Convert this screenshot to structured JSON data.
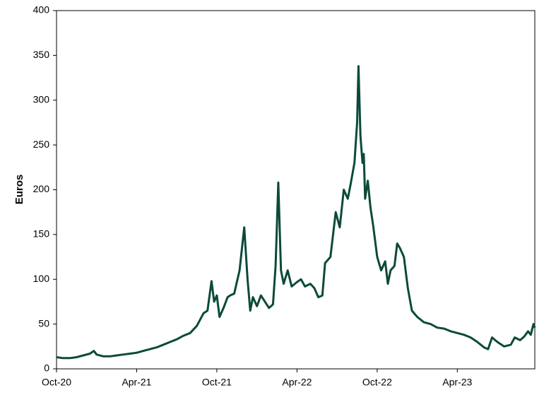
{
  "chart_data": {
    "type": "line",
    "y_label": "Euros",
    "color": "#0b4a3a",
    "x": [
      0,
      0.5,
      1,
      1.5,
      2,
      2.5,
      2.8,
      3,
      3.5,
      4,
      4.5,
      5,
      5.5,
      6,
      6.5,
      7,
      7.5,
      8,
      8.5,
      9,
      9.5,
      10,
      10.5,
      11,
      11.3,
      11.6,
      11.8,
      12,
      12.2,
      12.5,
      12.8,
      13,
      13.3,
      13.7,
      14.05,
      14.3,
      14.5,
      14.7,
      15,
      15.3,
      15.6,
      15.9,
      16.2,
      16.4,
      16.6,
      16.8,
      17,
      17.3,
      17.6,
      18,
      18.3,
      18.6,
      19,
      19.3,
      19.6,
      19.9,
      20.1,
      20.5,
      20.9,
      21.2,
      21.5,
      21.8,
      22,
      22.3,
      22.5,
      22.6,
      22.75,
      22.9,
      23,
      23.1,
      23.3,
      23.5,
      23.7,
      24,
      24.3,
      24.6,
      24.8,
      25,
      25.3,
      25.5,
      25.7,
      26,
      26.3,
      26.6,
      27,
      27.5,
      28,
      28.5,
      29,
      29.5,
      30,
      30.5,
      31,
      31.5,
      32,
      32.3,
      32.6,
      33,
      33.5,
      34,
      34.3,
      34.7,
      35,
      35.3,
      35.5,
      35.7,
      35.8
    ],
    "values": [
      13,
      12,
      12,
      13,
      15,
      17,
      20,
      16,
      14,
      14,
      15,
      16,
      17,
      18,
      20,
      22,
      24,
      27,
      30,
      33,
      37,
      40,
      48,
      62,
      65,
      98,
      75,
      82,
      58,
      68,
      80,
      82,
      84,
      110,
      158,
      100,
      65,
      80,
      70,
      82,
      75,
      68,
      72,
      115,
      208,
      110,
      95,
      110,
      92,
      97,
      100,
      92,
      95,
      90,
      80,
      82,
      118,
      125,
      175,
      158,
      200,
      190,
      205,
      230,
      275,
      338,
      260,
      230,
      240,
      190,
      210,
      180,
      160,
      125,
      110,
      120,
      95,
      110,
      115,
      140,
      135,
      125,
      90,
      65,
      58,
      52,
      50,
      46,
      45,
      42,
      40,
      38,
      35,
      30,
      24,
      22,
      35,
      30,
      25,
      27,
      35,
      32,
      36,
      42,
      38,
      50,
      46
    ],
    "xlim": [
      0,
      35.8
    ],
    "ylim": [
      0,
      400
    ],
    "xticks": [
      {
        "value": 0,
        "label": "Oct-20"
      },
      {
        "value": 6,
        "label": "Apr-21"
      },
      {
        "value": 12,
        "label": "Oct-21"
      },
      {
        "value": 18,
        "label": "Apr-22"
      },
      {
        "value": 24,
        "label": "Oct-22"
      },
      {
        "value": 30,
        "label": "Apr-23"
      }
    ],
    "yticks": [
      0,
      50,
      100,
      150,
      200,
      250,
      300,
      350,
      400
    ]
  }
}
